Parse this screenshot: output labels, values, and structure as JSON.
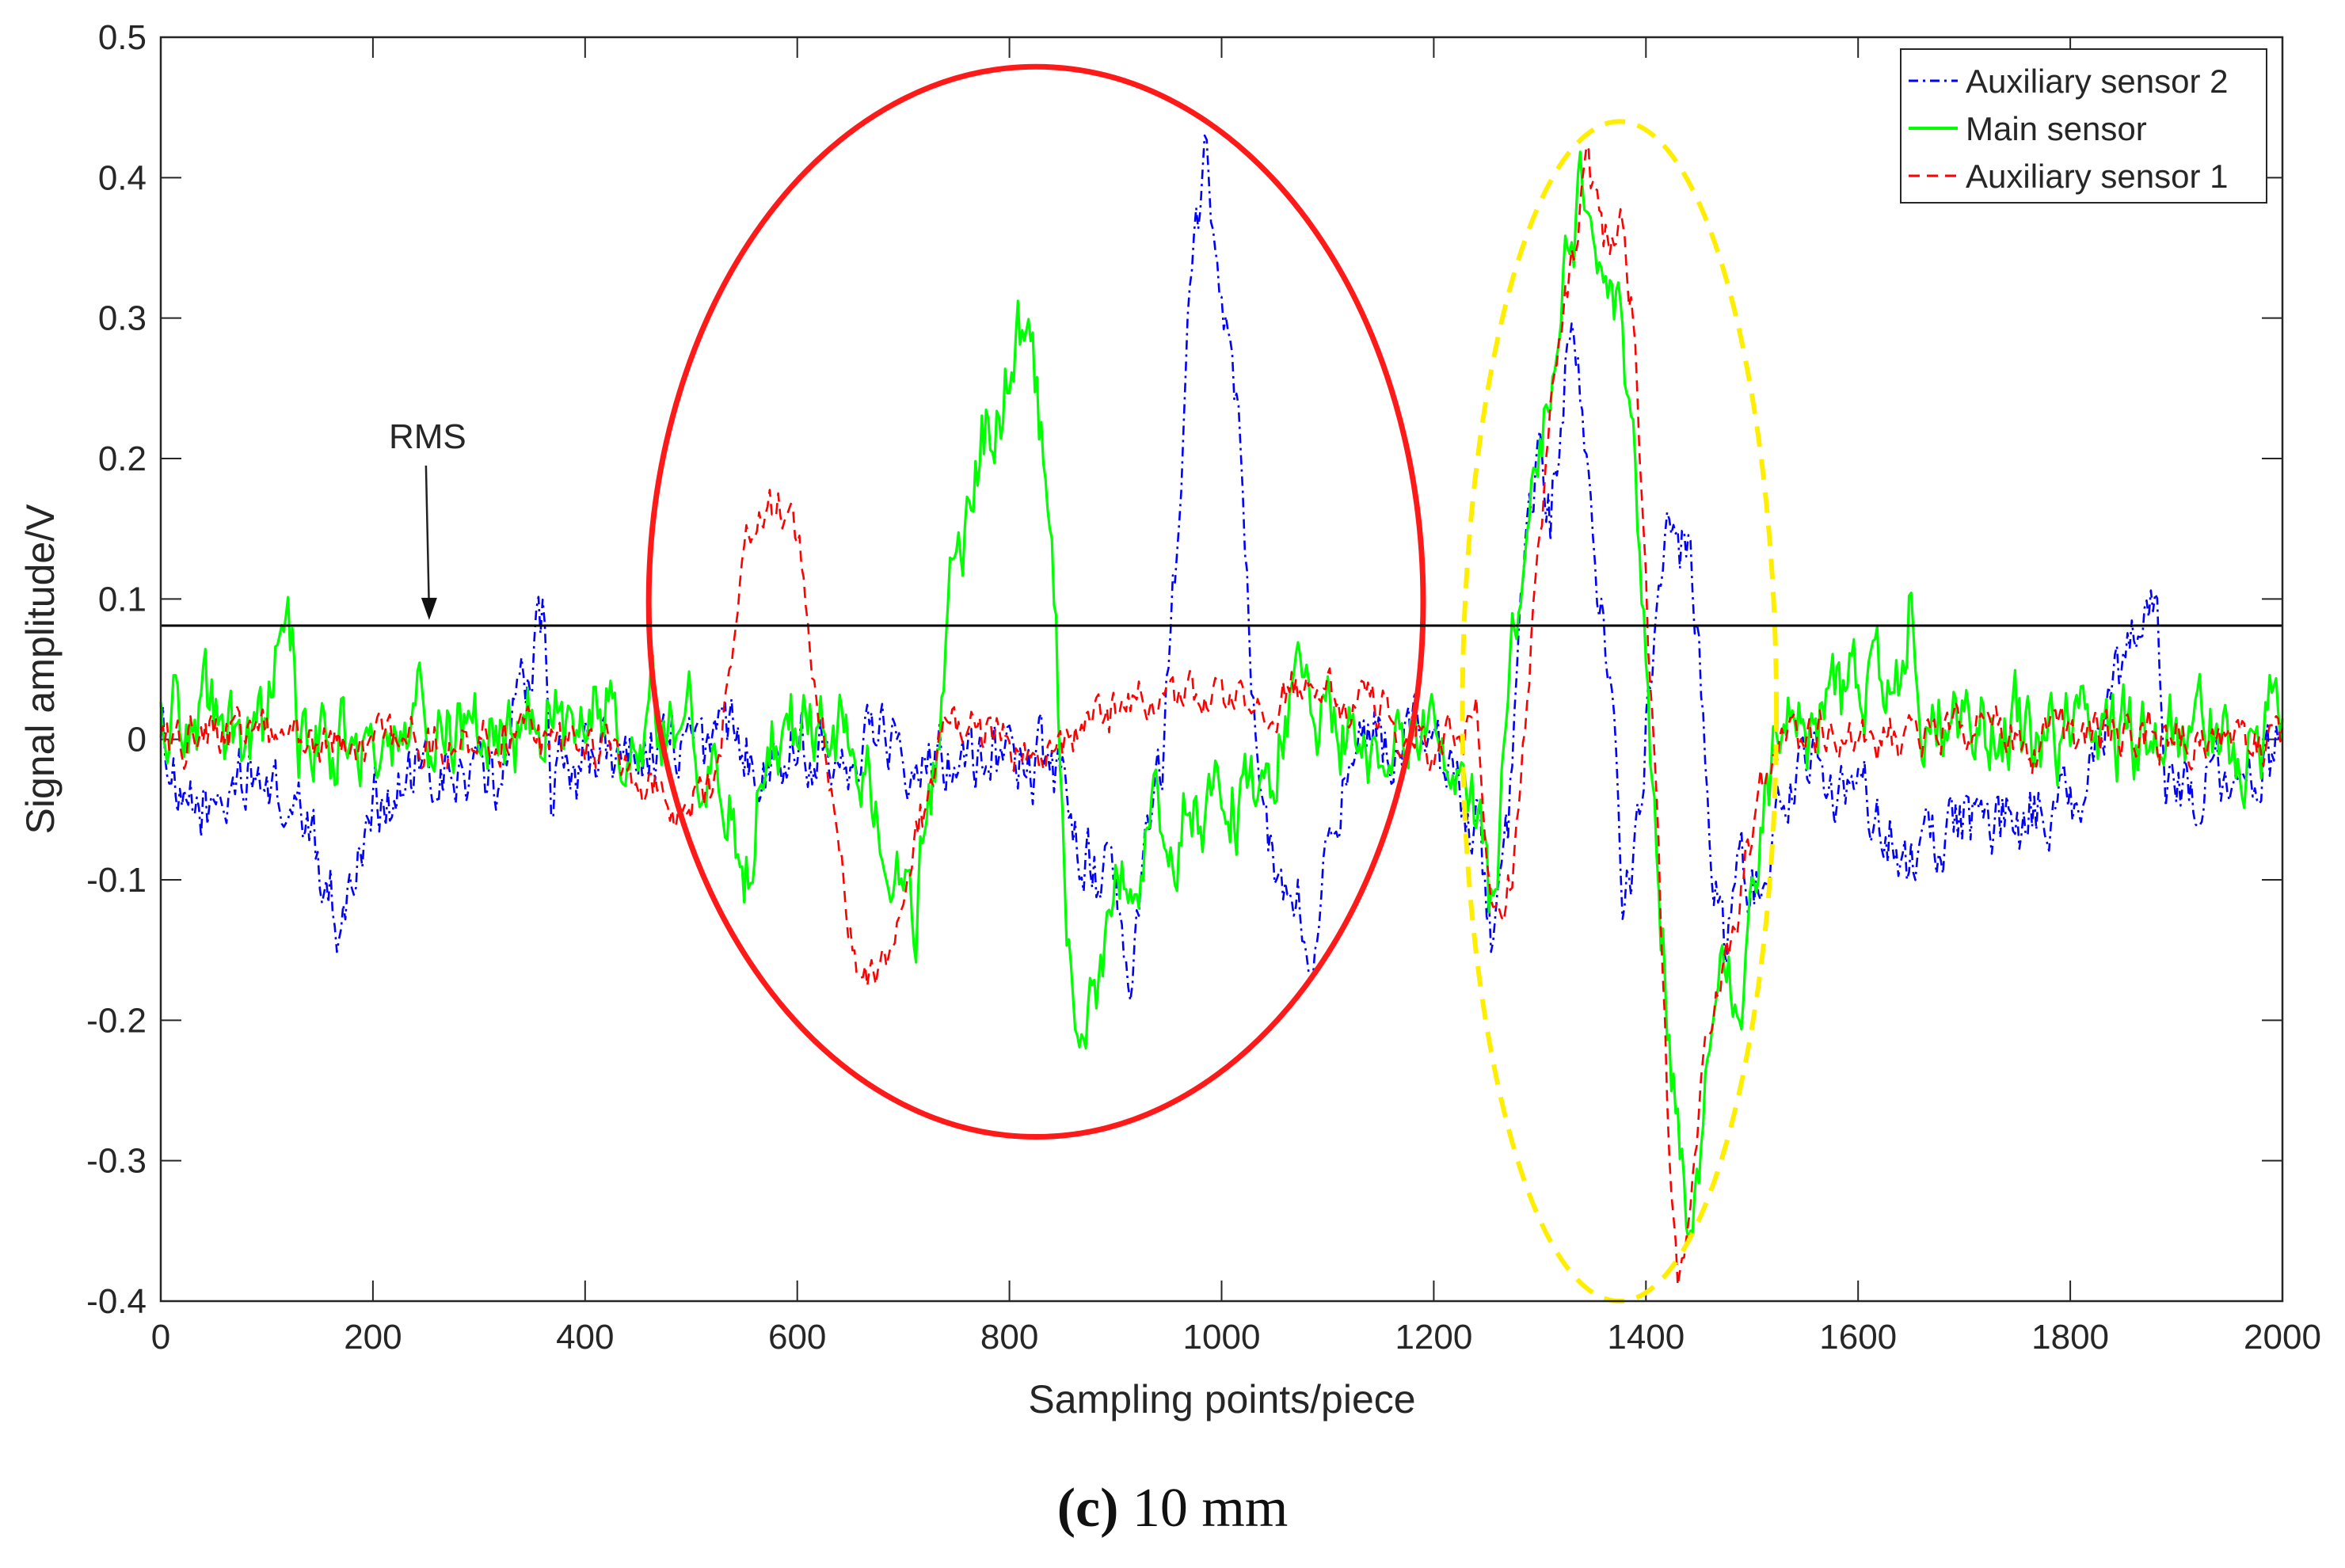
{
  "chart_data": {
    "type": "line",
    "xlabel": "Sampling points/piece",
    "ylabel": "Signal amplitude/V",
    "xlim": [
      0,
      2000
    ],
    "ylim": [
      -0.4,
      0.5
    ],
    "xticks": [
      0,
      200,
      400,
      600,
      800,
      1000,
      1200,
      1400,
      1600,
      1800,
      2000
    ],
    "xtick_labels": [
      "0",
      "200",
      "400",
      "600",
      "800",
      "1000",
      "1200",
      "1400",
      "1600",
      "1800",
      "2000"
    ],
    "yticks": [
      -0.4,
      -0.3,
      -0.2,
      -0.1,
      0,
      0.1,
      0.2,
      0.3,
      0.4,
      0.5
    ],
    "ytick_labels": [
      "-0.4",
      "-0.3",
      "-0.2",
      "-0.1",
      "0",
      "0.1",
      "0.2",
      "0.3",
      "0.4",
      "0.5"
    ],
    "rms": {
      "label": "RMS",
      "value": 0.081,
      "arrow_from": [
        250,
        0.195
      ],
      "arrow_to": [
        253,
        0.085
      ]
    },
    "legend_position": "top-right",
    "series": [
      {
        "name": "Auxiliary sensor 2",
        "color": "#0000ff",
        "style": "dashdot",
        "noise": 0.035,
        "offset": -0.02,
        "anchors": [
          [
            0,
            0.03
          ],
          [
            20,
            -0.05
          ],
          [
            80,
            -0.02
          ],
          [
            140,
            -0.05
          ],
          [
            170,
            -0.12
          ],
          [
            200,
            -0.03
          ],
          [
            260,
            -0.02
          ],
          [
            320,
            -0.01
          ],
          [
            362,
            0.11
          ],
          [
            368,
            -0.01
          ],
          [
            450,
            0.0
          ],
          [
            600,
            0.0
          ],
          [
            700,
            0.0
          ],
          [
            800,
            -0.01
          ],
          [
            830,
            -0.02
          ],
          [
            870,
            -0.08
          ],
          [
            900,
            -0.12
          ],
          [
            915,
            -0.2
          ],
          [
            930,
            -0.05
          ],
          [
            945,
            -0.02
          ],
          [
            960,
            0.18
          ],
          [
            970,
            0.3
          ],
          [
            985,
            0.42
          ],
          [
            1000,
            0.32
          ],
          [
            1010,
            0.3
          ],
          [
            1030,
            0.02
          ],
          [
            1040,
            -0.06
          ],
          [
            1055,
            -0.12
          ],
          [
            1070,
            -0.1
          ],
          [
            1085,
            -0.16
          ],
          [
            1100,
            -0.04
          ],
          [
            1150,
            0.0
          ],
          [
            1200,
            0.0
          ],
          [
            1240,
            -0.05
          ],
          [
            1255,
            -0.15
          ],
          [
            1270,
            -0.08
          ],
          [
            1290,
            0.15
          ],
          [
            1300,
            0.2
          ],
          [
            1310,
            0.15
          ],
          [
            1330,
            0.3
          ],
          [
            1345,
            0.2
          ],
          [
            1360,
            0.08
          ],
          [
            1375,
            -0.05
          ],
          [
            1380,
            -0.12
          ],
          [
            1395,
            -0.06
          ],
          [
            1410,
            0.12
          ],
          [
            1420,
            0.18
          ],
          [
            1430,
            0.15
          ],
          [
            1445,
            0.1
          ],
          [
            1460,
            -0.05
          ],
          [
            1475,
            -0.15
          ],
          [
            1490,
            -0.08
          ],
          [
            1510,
            -0.12
          ],
          [
            1530,
            -0.02
          ],
          [
            1600,
            -0.03
          ],
          [
            1650,
            -0.07
          ],
          [
            1700,
            -0.05
          ],
          [
            1800,
            -0.04
          ],
          [
            1882,
            0.11
          ],
          [
            1890,
            -0.01
          ],
          [
            1950,
            -0.02
          ],
          [
            2000,
            0.0
          ]
        ]
      },
      {
        "name": "Main sensor",
        "color": "#00ff00",
        "style": "solid",
        "noise": 0.042,
        "offset": 0.0,
        "anchors": [
          [
            0,
            0.02
          ],
          [
            100,
            0.0
          ],
          [
            120,
            0.1
          ],
          [
            130,
            0.0
          ],
          [
            300,
            0.01
          ],
          [
            400,
            0.01
          ],
          [
            500,
            0.0
          ],
          [
            540,
            -0.05
          ],
          [
            550,
            -0.12
          ],
          [
            565,
            0.0
          ],
          [
            640,
            0.0
          ],
          [
            690,
            -0.08
          ],
          [
            710,
            -0.14
          ],
          [
            730,
            -0.02
          ],
          [
            745,
            0.12
          ],
          [
            760,
            0.15
          ],
          [
            780,
            0.24
          ],
          [
            800,
            0.27
          ],
          [
            815,
            0.3
          ],
          [
            830,
            0.22
          ],
          [
            845,
            0.05
          ],
          [
            855,
            -0.15
          ],
          [
            870,
            -0.18
          ],
          [
            880,
            -0.2
          ],
          [
            900,
            -0.12
          ],
          [
            935,
            -0.08
          ],
          [
            970,
            -0.05
          ],
          [
            1000,
            -0.04
          ],
          [
            1040,
            -0.02
          ],
          [
            1060,
            0.02
          ],
          [
            1100,
            0.01
          ],
          [
            1200,
            0.0
          ],
          [
            1245,
            -0.05
          ],
          [
            1255,
            -0.12
          ],
          [
            1275,
            0.05
          ],
          [
            1290,
            0.15
          ],
          [
            1305,
            0.25
          ],
          [
            1320,
            0.33
          ],
          [
            1340,
            0.38
          ],
          [
            1360,
            0.32
          ],
          [
            1375,
            0.3
          ],
          [
            1390,
            0.22
          ],
          [
            1400,
            0.05
          ],
          [
            1410,
            -0.1
          ],
          [
            1420,
            -0.2
          ],
          [
            1430,
            -0.28
          ],
          [
            1440,
            -0.35
          ],
          [
            1450,
            -0.3
          ],
          [
            1460,
            -0.2
          ],
          [
            1470,
            -0.14
          ],
          [
            1490,
            -0.18
          ],
          [
            1505,
            -0.08
          ],
          [
            1525,
            0.0
          ],
          [
            1640,
            0.05
          ],
          [
            1650,
            0.11
          ],
          [
            1660,
            0.02
          ],
          [
            1800,
            0.0
          ],
          [
            2000,
            0.0
          ]
        ]
      },
      {
        "name": "Auxiliary sensor 1",
        "color": "#ff0000",
        "style": "dashed",
        "noise": 0.022,
        "offset": 0.0,
        "anchors": [
          [
            0,
            0.0
          ],
          [
            100,
            0.0
          ],
          [
            200,
            0.0
          ],
          [
            300,
            0.0
          ],
          [
            400,
            0.0
          ],
          [
            450,
            -0.03
          ],
          [
            480,
            -0.05
          ],
          [
            520,
            -0.04
          ],
          [
            540,
            0.05
          ],
          [
            555,
            0.15
          ],
          [
            570,
            0.18
          ],
          [
            590,
            0.16
          ],
          [
            605,
            0.12
          ],
          [
            625,
            0.0
          ],
          [
            640,
            -0.1
          ],
          [
            660,
            -0.17
          ],
          [
            680,
            -0.16
          ],
          [
            700,
            -0.1
          ],
          [
            720,
            -0.05
          ],
          [
            740,
            0.0
          ],
          [
            800,
            0.0
          ],
          [
            850,
            0.0
          ],
          [
            900,
            0.02
          ],
          [
            950,
            0.03
          ],
          [
            1000,
            0.03
          ],
          [
            1100,
            0.03
          ],
          [
            1200,
            0.0
          ],
          [
            1240,
            0.01
          ],
          [
            1255,
            -0.14
          ],
          [
            1275,
            -0.1
          ],
          [
            1290,
            0.05
          ],
          [
            1305,
            0.2
          ],
          [
            1320,
            0.3
          ],
          [
            1345,
            0.41
          ],
          [
            1360,
            0.35
          ],
          [
            1380,
            0.36
          ],
          [
            1390,
            0.28
          ],
          [
            1400,
            0.1
          ],
          [
            1410,
            -0.05
          ],
          [
            1420,
            -0.25
          ],
          [
            1430,
            -0.38
          ],
          [
            1440,
            -0.34
          ],
          [
            1455,
            -0.22
          ],
          [
            1470,
            -0.18
          ],
          [
            1490,
            -0.1
          ],
          [
            1505,
            -0.05
          ],
          [
            1525,
            0.0
          ],
          [
            1600,
            0.0
          ],
          [
            1800,
            0.0
          ],
          [
            2000,
            0.0
          ]
        ]
      }
    ],
    "annotations": [
      {
        "name": "red-ellipse",
        "shape": "ellipse",
        "color": "#ff1a1a",
        "style": "solid",
        "cx": 825,
        "cy": 0.098,
        "rx": 365,
        "ry": 0.381
      },
      {
        "name": "yellow-ellipse",
        "shape": "ellipse",
        "color": "#ffee00",
        "style": "dashed",
        "cx": 1375,
        "cy": 0.02,
        "rx": 148,
        "ry": 0.42
      }
    ]
  },
  "caption": {
    "label": "(c)",
    "text": " 10 mm"
  }
}
